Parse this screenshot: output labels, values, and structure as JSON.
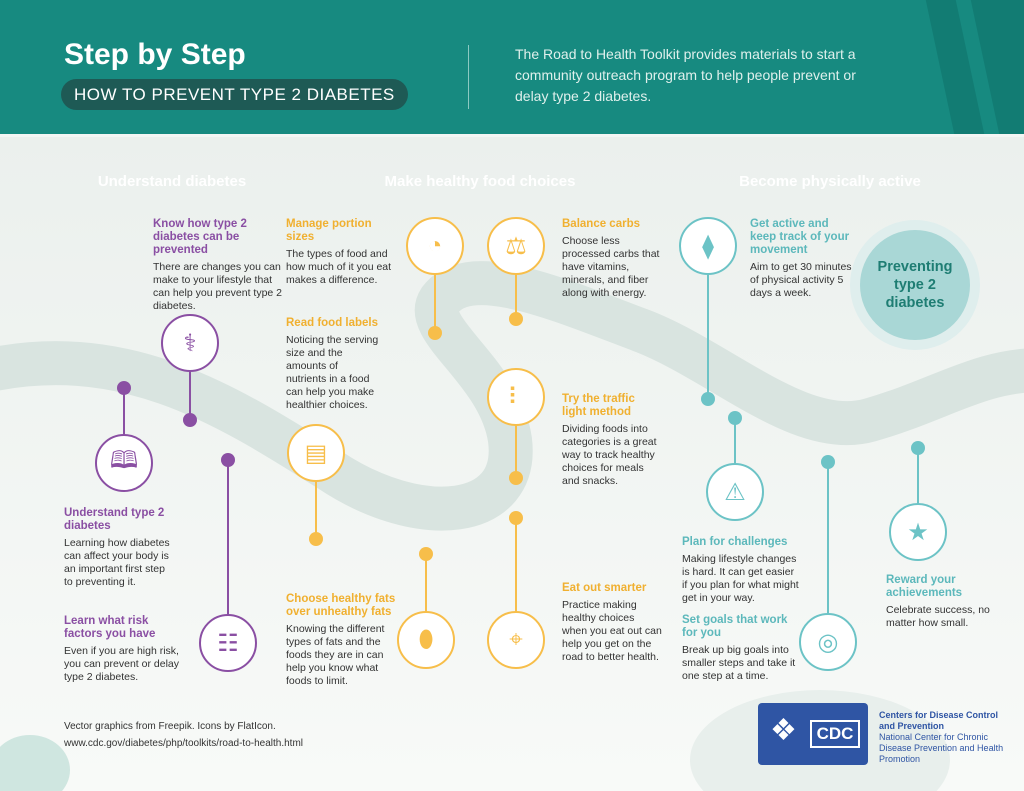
{
  "header": {
    "title": "Step by Step",
    "subtitle": "HOW TO PREVENT TYPE 2 DIABETES",
    "intro": "The Road to Health Toolkit provides materials to start a community outreach program to help people prevent or delay type 2 diabetes."
  },
  "colors": {
    "header": "#178a80",
    "purple": "#8a4fa3",
    "yellow": "#f7be4a",
    "teal": "#6cc3c6"
  },
  "sections": [
    {
      "label": "Understand diabetes",
      "color": "#8a4fa3"
    },
    {
      "label": "Make healthy food choices",
      "color": "#f7be4a"
    },
    {
      "label": "Become physically active",
      "color": "#6cc3c6"
    }
  ],
  "steps": [
    {
      "section": 0,
      "title": "Know how type 2 diabetes can be prevented",
      "text": "There are changes you can make to your lifestyle that can help you prevent type 2 diabetes.",
      "icon": "stethoscope-icon"
    },
    {
      "section": 0,
      "title": "Understand type 2 diabetes",
      "text": "Learning how diabetes can affect your body is an important first step to preventing it.",
      "icon": "book-icon"
    },
    {
      "section": 0,
      "title": "Learn what risk factors you have",
      "text": "Even if you are high risk, you can prevent or delay type 2 diabetes.",
      "icon": "clipboard-icon"
    },
    {
      "section": 1,
      "title": "Manage portion sizes",
      "text": "The types of food and how much of it you eat makes a difference.",
      "icon": "plate-icon"
    },
    {
      "section": 1,
      "title": "Balance carbs",
      "text": "Choose less processed carbs that have vitamins, minerals, and fiber along with energy.",
      "icon": "scale-icon"
    },
    {
      "section": 1,
      "title": "Read food labels",
      "text": "Noticing the serving size and the amounts of nutrients in a food can help you make healthier choices.",
      "icon": "food-label-icon"
    },
    {
      "section": 1,
      "title": "Try the traffic light method",
      "text": "Dividing foods into categories is a great way to track healthy choices for meals and snacks.",
      "icon": "traffic-light-icon"
    },
    {
      "section": 1,
      "title": "Choose healthy fats over unhealthy fats",
      "text": "Knowing the different types of fats and the foods they are in can help you know what foods to limit.",
      "icon": "steak-icon"
    },
    {
      "section": 1,
      "title": "Eat out smarter",
      "text": "Practice making healthy choices when you eat out can help you get on the road to better health.",
      "icon": "restaurant-pin-icon"
    },
    {
      "section": 2,
      "title": "Get active and keep track of your movement",
      "text": "Aim to get 30 minutes of physical activity 5 days a week.",
      "icon": "dumbbell-icon"
    },
    {
      "section": 2,
      "title": "Plan for challenges",
      "text": "Making lifestyle changes is hard. It can get easier if you plan for what might get in your way.",
      "icon": "barrier-icon"
    },
    {
      "section": 2,
      "title": "Set goals that work for you",
      "text": "Break up big goals into smaller steps and take it one step at a time.",
      "icon": "target-icon"
    },
    {
      "section": 2,
      "title": "Reward your achievements",
      "text": "Celebrate success, no matter how small.",
      "icon": "trophy-icon"
    }
  ],
  "goal": "Preventing type 2 diabetes",
  "footer": {
    "credit": "Vector graphics from Freepik. Icons by FlatIcon.",
    "url": "www.cdc.gov/diabetes/php/toolkits/road-to-health.html"
  },
  "logo": {
    "text": "CDC",
    "org": "Centers for Disease Control and Prevention",
    "center": "National Center for Chronic Disease Prevention and Health Promotion"
  }
}
